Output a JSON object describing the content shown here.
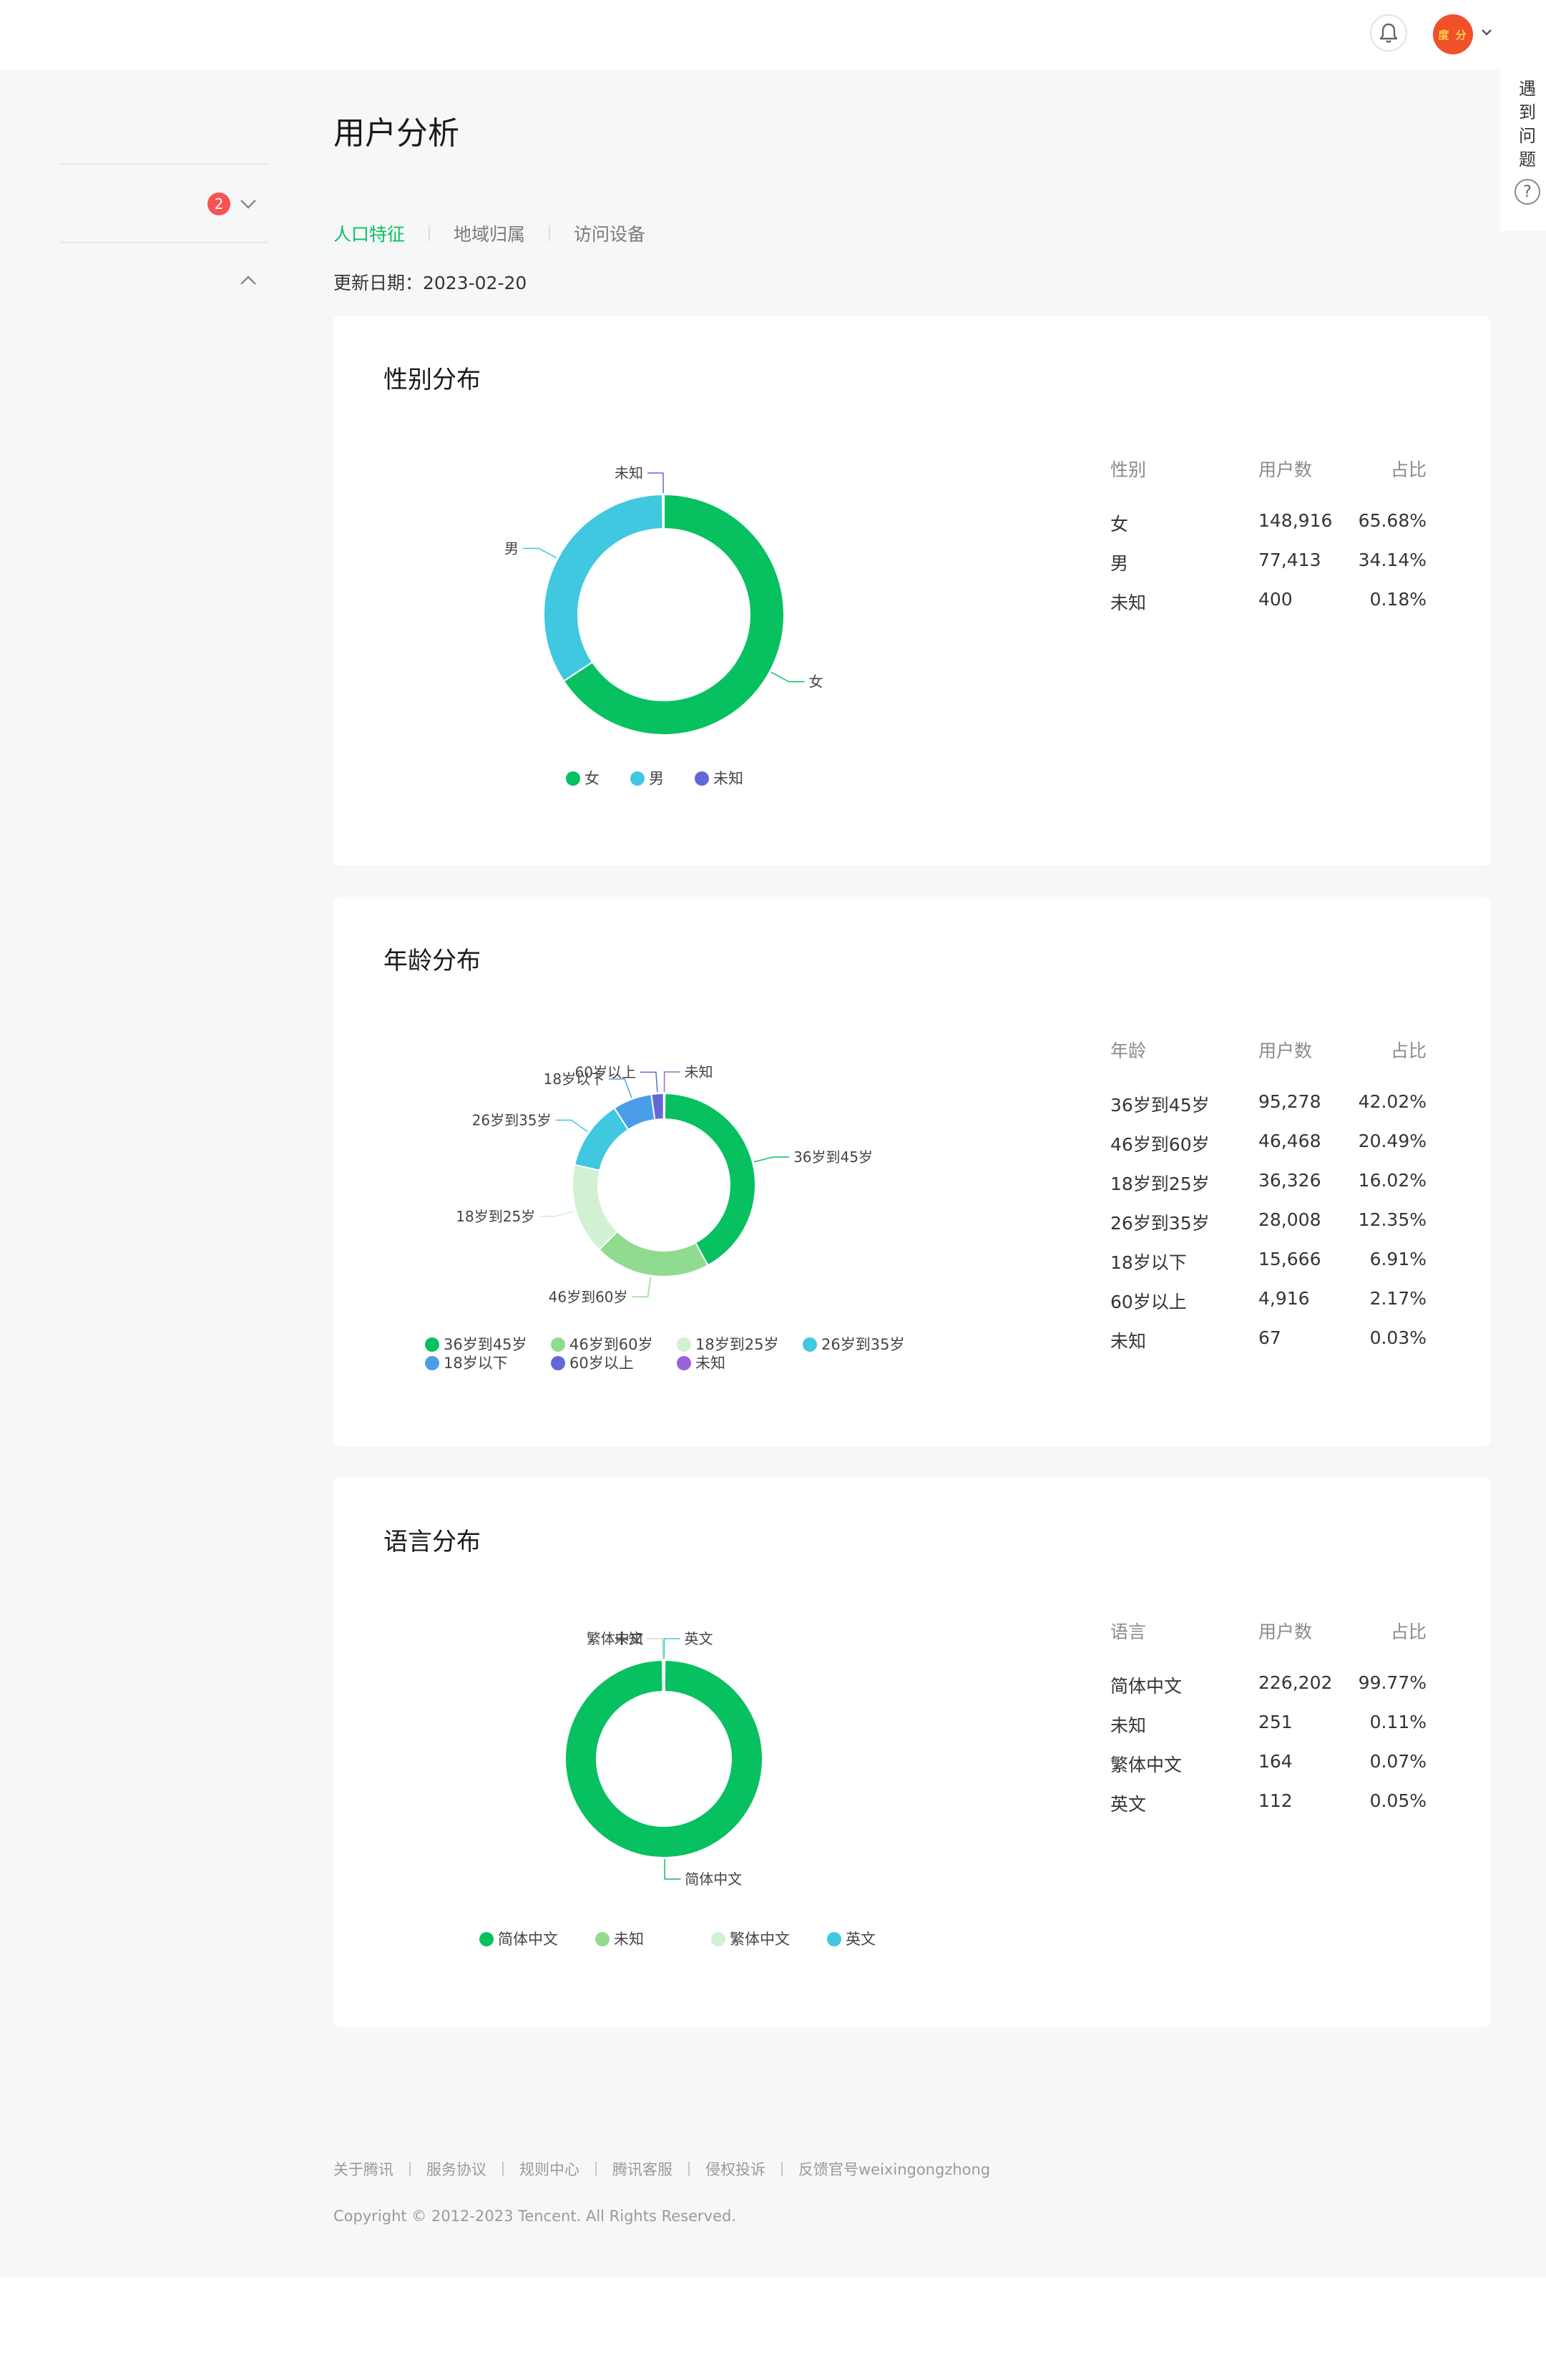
{
  "header": {
    "avatar_text": "度 分",
    "icons": [
      "bell-icon",
      "chevron-down-icon"
    ]
  },
  "sidebar": {
    "badge_count": "2"
  },
  "help": {
    "text": "遇到问题",
    "icon": "?"
  },
  "page_title": "用户分析",
  "tabs": [
    {
      "label": "人口特征",
      "active": true
    },
    {
      "label": "地域归属",
      "active": false
    },
    {
      "label": "访问设备",
      "active": false
    }
  ],
  "update_date": "更新日期：2023-02-20",
  "sections": {
    "gender": {
      "title": "性别分布",
      "columns": [
        "性别",
        "用户数",
        "占比"
      ],
      "rows": [
        {
          "label": "女",
          "count": "148,916",
          "pct": "65.68%"
        },
        {
          "label": "男",
          "count": "77,413",
          "pct": "34.14%"
        },
        {
          "label": "未知",
          "count": "400",
          "pct": "0.18%"
        }
      ]
    },
    "age": {
      "title": "年龄分布",
      "columns": [
        "年龄",
        "用户数",
        "占比"
      ],
      "rows": [
        {
          "label": "36岁到45岁",
          "count": "95,278",
          "pct": "42.02%"
        },
        {
          "label": "46岁到60岁",
          "count": "46,468",
          "pct": "20.49%"
        },
        {
          "label": "18岁到25岁",
          "count": "36,326",
          "pct": "16.02%"
        },
        {
          "label": "26岁到35岁",
          "count": "28,008",
          "pct": "12.35%"
        },
        {
          "label": "18岁以下",
          "count": "15,666",
          "pct": "6.91%"
        },
        {
          "label": "60岁以上",
          "count": "4,916",
          "pct": "2.17%"
        },
        {
          "label": "未知",
          "count": "67",
          "pct": "0.03%"
        }
      ]
    },
    "language": {
      "title": "语言分布",
      "columns": [
        "语言",
        "用户数",
        "占比"
      ],
      "rows": [
        {
          "label": "简体中文",
          "count": "226,202",
          "pct": "99.77%"
        },
        {
          "label": "未知",
          "count": "251",
          "pct": "0.11%"
        },
        {
          "label": "繁体中文",
          "count": "164",
          "pct": "0.07%"
        },
        {
          "label": "英文",
          "count": "112",
          "pct": "0.05%"
        }
      ]
    }
  },
  "chart_data": [
    {
      "type": "pie",
      "categories": [
        "女",
        "男",
        "未知"
      ],
      "values": [
        148916,
        77413,
        400
      ],
      "colors": [
        "#07c160",
        "#40c8e0",
        "#6467d6"
      ],
      "legend": [
        "女",
        "男",
        "未知"
      ],
      "legend_position": "bottom"
    },
    {
      "type": "pie",
      "categories": [
        "36岁到45岁",
        "46岁到60岁",
        "18岁到25岁",
        "26岁到35岁",
        "18岁以下",
        "60岁以上",
        "未知"
      ],
      "values": [
        95278,
        46468,
        36326,
        28008,
        15666,
        4916,
        67
      ],
      "colors": [
        "#07c160",
        "#8fdb8f",
        "#d2f0d2",
        "#40c8e0",
        "#4a9ee8",
        "#6467d6",
        "#9b63db"
      ],
      "legend": [
        "36岁到45岁",
        "46岁到60岁",
        "18岁到25岁",
        "26岁到35岁",
        "18岁以下",
        "60岁以上",
        "未知"
      ],
      "legend_position": "bottom"
    },
    {
      "type": "pie",
      "categories": [
        "简体中文",
        "未知",
        "繁体中文",
        "英文"
      ],
      "values": [
        226202,
        251,
        164,
        112
      ],
      "colors": [
        "#07c160",
        "#8fdb8f",
        "#d2f0d2",
        "#40c8e0"
      ],
      "legend": [
        "简体中文",
        "未知",
        "繁体中文",
        "英文"
      ],
      "legend_position": "bottom"
    }
  ],
  "footer": {
    "links": [
      "关于腾讯",
      "服务协议",
      "规则中心",
      "腾讯客服",
      "侵权投诉",
      "反馈官号weixingongzhong"
    ],
    "copyright": "Copyright © 2012-2023 Tencent. All Rights Reserved."
  }
}
